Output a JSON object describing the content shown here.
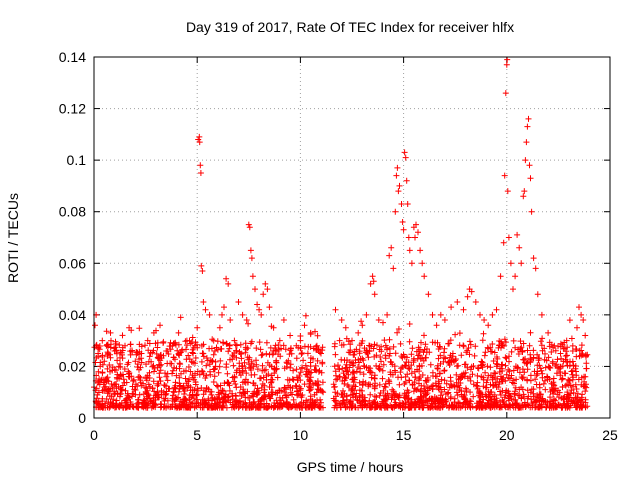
{
  "chart_data": {
    "type": "scatter",
    "title": "Day 319 of 2017, Rate Of TEC Index for receiver hlfx",
    "xlabel": "GPS time / hours",
    "ylabel": "ROTI / TECUs",
    "xlim": [
      0,
      25
    ],
    "ylim": [
      0,
      0.14
    ],
    "xticks": [
      0,
      5,
      10,
      15,
      20,
      25
    ],
    "xtick_labels": [
      "0",
      "5",
      "10",
      "15",
      "20",
      "25"
    ],
    "yticks": [
      0,
      0.02,
      0.04,
      0.06,
      0.08,
      0.1,
      0.12,
      0.14
    ],
    "ytick_labels": [
      "0",
      "0.02",
      "0.04",
      "0.06",
      "0.08",
      "0.1",
      "0.12",
      "0.14"
    ],
    "grid": true,
    "marker": "+",
    "marker_color": "#ff0000",
    "data_gap_hours": [
      11.1,
      11.6
    ],
    "series": [
      {
        "name": "ROTI",
        "points": [
          [
            0.0,
            0.012
          ],
          [
            0.05,
            0.036
          ],
          [
            0.1,
            0.04
          ],
          [
            0.1,
            0.028
          ],
          [
            0.2,
            0.025
          ],
          [
            0.3,
            0.02
          ],
          [
            0.4,
            0.03
          ],
          [
            0.5,
            0.022
          ],
          [
            0.6,
            0.028
          ],
          [
            0.8,
            0.033
          ],
          [
            1.0,
            0.026
          ],
          [
            1.2,
            0.02
          ],
          [
            1.5,
            0.028
          ],
          [
            1.7,
            0.035
          ],
          [
            1.8,
            0.034
          ],
          [
            2.0,
            0.022
          ],
          [
            2.3,
            0.025
          ],
          [
            2.6,
            0.03
          ],
          [
            2.9,
            0.033
          ],
          [
            3.2,
            0.036
          ],
          [
            3.5,
            0.026
          ],
          [
            3.8,
            0.028
          ],
          [
            4.1,
            0.033
          ],
          [
            4.2,
            0.039
          ],
          [
            4.5,
            0.03
          ],
          [
            4.8,
            0.025
          ],
          [
            5.0,
            0.035
          ],
          [
            5.05,
            0.108
          ],
          [
            5.1,
            0.109
          ],
          [
            5.12,
            0.107
          ],
          [
            5.15,
            0.098
          ],
          [
            5.18,
            0.095
          ],
          [
            5.2,
            0.059
          ],
          [
            5.25,
            0.057
          ],
          [
            5.3,
            0.045
          ],
          [
            5.4,
            0.042
          ],
          [
            5.6,
            0.04
          ],
          [
            5.8,
            0.03
          ],
          [
            6.1,
            0.035
          ],
          [
            6.2,
            0.04
          ],
          [
            6.3,
            0.043
          ],
          [
            6.4,
            0.054
          ],
          [
            6.5,
            0.052
          ],
          [
            6.6,
            0.038
          ],
          [
            6.8,
            0.03
          ],
          [
            7.0,
            0.045
          ],
          [
            7.2,
            0.04
          ],
          [
            7.4,
            0.038
          ],
          [
            7.5,
            0.075
          ],
          [
            7.55,
            0.074
          ],
          [
            7.6,
            0.065
          ],
          [
            7.65,
            0.062
          ],
          [
            7.7,
            0.055
          ],
          [
            7.8,
            0.05
          ],
          [
            7.9,
            0.044
          ],
          [
            8.0,
            0.042
          ],
          [
            8.1,
            0.04
          ],
          [
            8.2,
            0.048
          ],
          [
            8.3,
            0.052
          ],
          [
            8.4,
            0.05
          ],
          [
            8.5,
            0.043
          ],
          [
            8.7,
            0.035
          ],
          [
            9.0,
            0.03
          ],
          [
            9.2,
            0.038
          ],
          [
            9.5,
            0.032
          ],
          [
            9.8,
            0.028
          ],
          [
            10.0,
            0.03
          ],
          [
            10.2,
            0.036
          ],
          [
            10.5,
            0.033
          ],
          [
            10.8,
            0.028
          ],
          [
            11.0,
            0.025
          ],
          [
            11.7,
            0.042
          ],
          [
            11.9,
            0.03
          ],
          [
            12.0,
            0.038
          ],
          [
            12.2,
            0.035
          ],
          [
            12.5,
            0.03
          ],
          [
            12.8,
            0.033
          ],
          [
            13.0,
            0.036
          ],
          [
            13.2,
            0.04
          ],
          [
            13.4,
            0.052
          ],
          [
            13.5,
            0.055
          ],
          [
            13.55,
            0.053
          ],
          [
            13.6,
            0.048
          ],
          [
            13.8,
            0.038
          ],
          [
            14.0,
            0.037
          ],
          [
            14.2,
            0.04
          ],
          [
            14.3,
            0.063
          ],
          [
            14.4,
            0.066
          ],
          [
            14.5,
            0.058
          ],
          [
            14.6,
            0.08
          ],
          [
            14.65,
            0.094
          ],
          [
            14.7,
            0.097
          ],
          [
            14.75,
            0.088
          ],
          [
            14.8,
            0.09
          ],
          [
            14.9,
            0.083
          ],
          [
            14.95,
            0.076
          ],
          [
            15.0,
            0.073
          ],
          [
            15.05,
            0.103
          ],
          [
            15.1,
            0.101
          ],
          [
            15.15,
            0.092
          ],
          [
            15.2,
            0.083
          ],
          [
            15.25,
            0.07
          ],
          [
            15.3,
            0.065
          ],
          [
            15.4,
            0.06
          ],
          [
            15.5,
            0.074
          ],
          [
            15.55,
            0.07
          ],
          [
            15.6,
            0.075
          ],
          [
            15.7,
            0.072
          ],
          [
            15.8,
            0.065
          ],
          [
            15.9,
            0.06
          ],
          [
            16.0,
            0.055
          ],
          [
            16.2,
            0.048
          ],
          [
            16.4,
            0.04
          ],
          [
            16.6,
            0.036
          ],
          [
            16.8,
            0.04
          ],
          [
            17.0,
            0.038
          ],
          [
            17.3,
            0.043
          ],
          [
            17.6,
            0.045
          ],
          [
            17.9,
            0.042
          ],
          [
            18.1,
            0.047
          ],
          [
            18.2,
            0.05
          ],
          [
            18.3,
            0.049
          ],
          [
            18.5,
            0.045
          ],
          [
            18.7,
            0.04
          ],
          [
            18.9,
            0.038
          ],
          [
            19.1,
            0.036
          ],
          [
            19.3,
            0.04
          ],
          [
            19.5,
            0.042
          ],
          [
            19.7,
            0.055
          ],
          [
            19.85,
            0.068
          ],
          [
            19.9,
            0.094
          ],
          [
            19.95,
            0.126
          ],
          [
            20.0,
            0.137
          ],
          [
            20.02,
            0.139
          ],
          [
            20.05,
            0.088
          ],
          [
            20.1,
            0.07
          ],
          [
            20.2,
            0.06
          ],
          [
            20.3,
            0.05
          ],
          [
            20.4,
            0.055
          ],
          [
            20.5,
            0.071
          ],
          [
            20.6,
            0.066
          ],
          [
            20.7,
            0.06
          ],
          [
            20.8,
            0.086
          ],
          [
            20.85,
            0.088
          ],
          [
            20.9,
            0.1
          ],
          [
            20.95,
            0.107
          ],
          [
            21.0,
            0.113
          ],
          [
            21.05,
            0.116
          ],
          [
            21.1,
            0.098
          ],
          [
            21.15,
            0.093
          ],
          [
            21.2,
            0.08
          ],
          [
            21.3,
            0.062
          ],
          [
            21.4,
            0.058
          ],
          [
            21.5,
            0.048
          ],
          [
            21.7,
            0.04
          ],
          [
            22.0,
            0.033
          ],
          [
            22.3,
            0.028
          ],
          [
            22.6,
            0.025
          ],
          [
            22.9,
            0.03
          ],
          [
            23.2,
            0.026
          ],
          [
            23.4,
            0.035
          ],
          [
            23.5,
            0.043
          ],
          [
            23.6,
            0.04
          ],
          [
            23.7,
            0.038
          ],
          [
            23.8,
            0.032
          ]
        ]
      }
    ]
  }
}
